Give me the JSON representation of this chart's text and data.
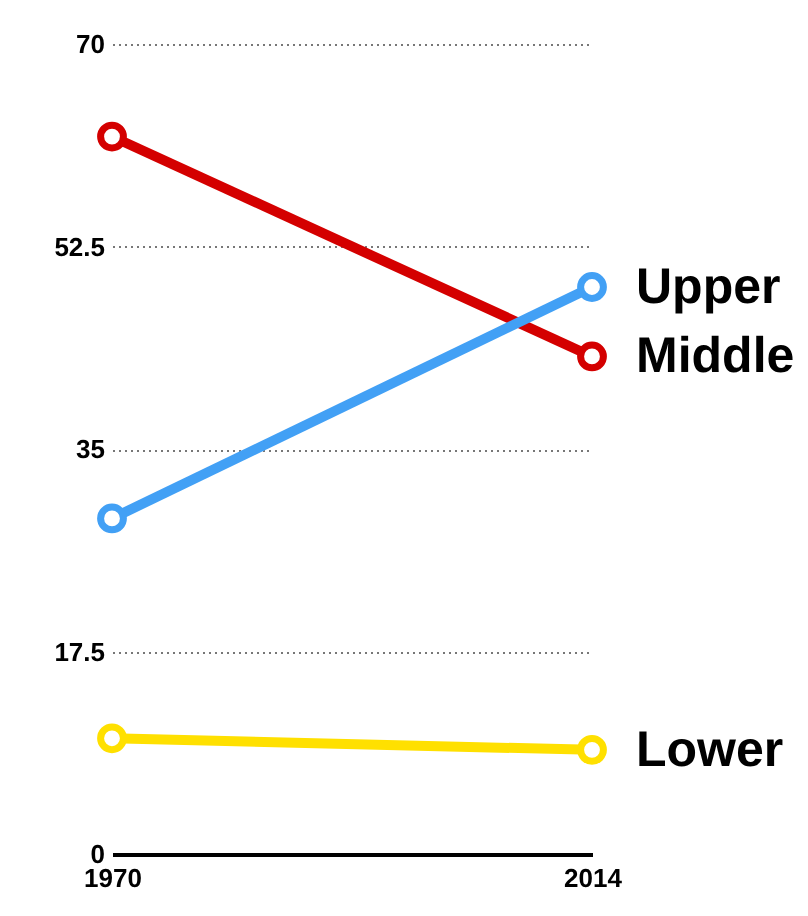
{
  "chart_data": {
    "type": "line",
    "x": [
      1970,
      2014
    ],
    "xlim": [
      1970,
      2014
    ],
    "xticks": [
      1970,
      2014
    ],
    "ylim": [
      0,
      70
    ],
    "yticks": [
      0,
      17.5,
      35,
      52.5,
      70
    ],
    "grid": "y",
    "marker": "circle",
    "line_style": "solid",
    "series": [
      {
        "name": "Middle",
        "color": "#d40000",
        "values": [
          62,
          43
        ]
      },
      {
        "name": "Upper",
        "color": "#42a0f5",
        "values": [
          29,
          49
        ]
      },
      {
        "name": "Lower",
        "color": "#ffe000",
        "values": [
          10,
          9
        ]
      }
    ]
  }
}
